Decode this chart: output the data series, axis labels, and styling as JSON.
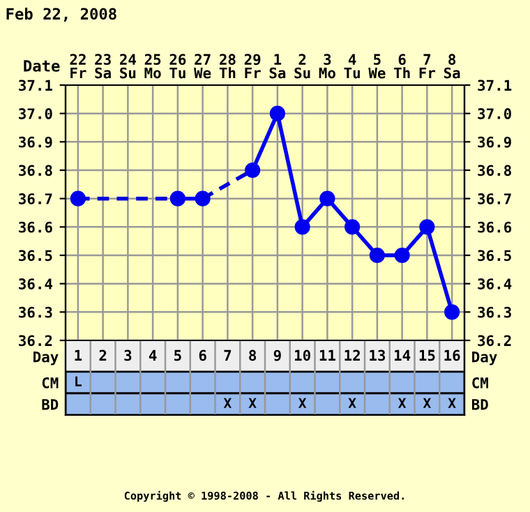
{
  "chart_data": [
    {
      "type": "line",
      "title": "Feb 22, 2008",
      "xlabel": "Date",
      "categories": [
        "22\nFr",
        "23\nSa",
        "24\nSu",
        "25\nMo",
        "26\nTu",
        "27\nWe",
        "28\nTh",
        "29\nFr",
        "1\nSa",
        "2\nSu",
        "3\nMo",
        "4\nTu",
        "5\nWe",
        "6\nTh",
        "7\nFr",
        "8\nSa"
      ],
      "ylim": [
        36.2,
        37.1
      ],
      "yticks": [
        {
          "value": 36.2,
          "label": "36.2"
        },
        {
          "value": 36.3,
          "label": "36.3"
        },
        {
          "value": 36.4,
          "label": "36.4"
        },
        {
          "value": 36.5,
          "label": "36.5"
        },
        {
          "value": 36.6,
          "label": "36.6"
        },
        {
          "value": 36.7,
          "label": "36.7"
        },
        {
          "value": 36.8,
          "label": "36.8"
        },
        {
          "value": 36.9,
          "label": "36.9"
        },
        {
          "value": 37.0,
          "label": "37.0"
        },
        {
          "value": 37.1,
          "label": "37.1"
        }
      ],
      "y2lim": [
        36.2,
        37.1
      ],
      "y2ticks": [
        {
          "value": 36.2,
          "label": "36.2"
        },
        {
          "value": 36.3,
          "label": "36.3"
        },
        {
          "value": 36.4,
          "label": "36.4"
        },
        {
          "value": 36.5,
          "label": "36.5"
        },
        {
          "value": 36.6,
          "label": "36.6"
        },
        {
          "value": 36.7,
          "label": "36.7"
        },
        {
          "value": 36.8,
          "label": "36.8"
        },
        {
          "value": 36.9,
          "label": "36.9"
        },
        {
          "value": 37.0,
          "label": "37.0"
        },
        {
          "value": 37.1,
          "label": "37.1"
        }
      ],
      "grid": true,
      "series": [
        {
          "color": "#0000ee",
          "marker": "circle",
          "line_style": "solid",
          "values": [
            36.7,
            null,
            null,
            null,
            36.7,
            36.7,
            null,
            36.8,
            37.0,
            36.6,
            36.7,
            36.6,
            36.5,
            36.5,
            36.6,
            36.3
          ]
        },
        {
          "color": "#0000dd",
          "marker": "none",
          "line_style": "dashed",
          "values": [
            36.7,
            null,
            null,
            null,
            36.7,
            null,
            null,
            null,
            null,
            null,
            null,
            null,
            null,
            null,
            null,
            null
          ]
        },
        {
          "color": "#0000dd",
          "marker": "none",
          "line_style": "dashed",
          "values": [
            null,
            null,
            null,
            null,
            null,
            36.7,
            null,
            36.8,
            null,
            null,
            null,
            null,
            null,
            null,
            null,
            null
          ]
        }
      ]
    },
    {
      "type": "heatmap",
      "xlabel": "Day",
      "categories": [
        "1",
        "2",
        "3",
        "4",
        "5",
        "6",
        "7",
        "8",
        "9",
        "10",
        "11",
        "12",
        "13",
        "14",
        "15",
        "16"
      ],
      "y_categories": [
        "CM",
        "BD"
      ],
      "y2_categories": [
        "CM",
        "BD"
      ],
      "cells": [
        [
          null,
          null,
          null,
          null,
          null,
          null,
          null,
          null,
          null,
          null,
          null,
          null,
          null,
          null,
          null,
          null
        ],
        [
          null,
          null,
          null,
          null,
          null,
          null,
          null,
          null,
          null,
          null,
          null,
          null,
          null,
          null,
          null,
          null
        ]
      ],
      "cell_labels": [
        [
          "L",
          null,
          null,
          null,
          null,
          null,
          null,
          null,
          null,
          null,
          null,
          null,
          null,
          null,
          null,
          null
        ],
        [
          null,
          null,
          null,
          null,
          null,
          null,
          "X",
          "X",
          null,
          "X",
          null,
          "X",
          null,
          "X",
          "X",
          "X"
        ]
      ],
      "annotations": [
        "Copyright © 1998-2008 - All Rights Reserved."
      ]
    }
  ]
}
